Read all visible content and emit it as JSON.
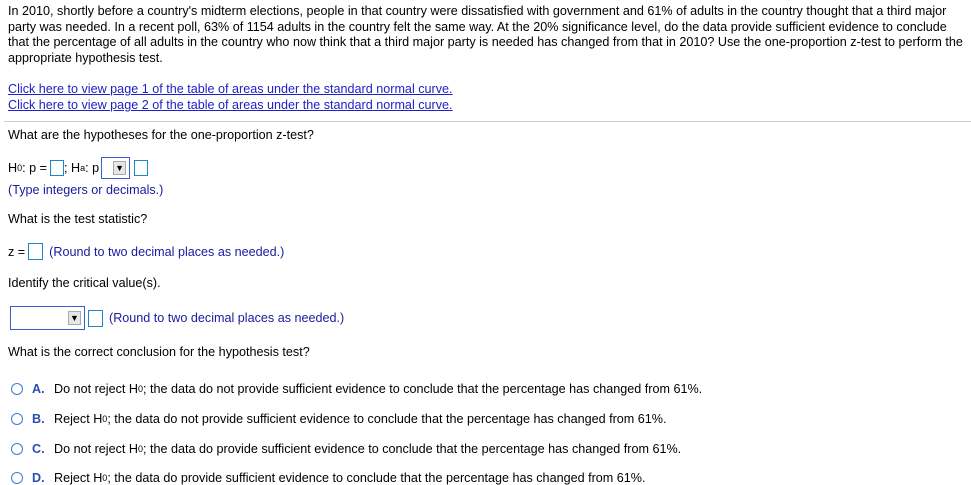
{
  "problem": "In 2010, shortly before a country's midterm elections, people in that country were dissatisfied with government and 61% of adults in the country thought that a third major party was needed. In a recent poll, 63% of 1154 adults in the country felt the same way. At the 20% significance level, do the data provide sufficient evidence to conclude that the percentage of all adults in the country who now think that a third major party is needed has changed from that in 2010? Use the one-proportion z-test to perform the appropriate hypothesis test.",
  "links": [
    "Click here to view page 1 of the table of areas under the standard normal curve.",
    "Click here to view page 2 of the table of areas under the standard normal curve."
  ],
  "q1": {
    "question": "What are the hypotheses for the one-proportion z-test?",
    "h0": "H",
    "h0_sub": "0",
    "h0_rest": ": p =",
    "sep": "; H",
    "ha_sub": "a",
    "ha_rest": ": p",
    "hint": "(Type integers or decimals.)"
  },
  "q2": {
    "question": "What is the test statistic?",
    "label": "z =",
    "hint": "(Round to two decimal places as needed.)"
  },
  "q3": {
    "question": "Identify the critical value(s).",
    "hint": "(Round to two decimal places as needed.)"
  },
  "q4": {
    "question": "What is the correct conclusion for the hypothesis test?",
    "options": [
      {
        "letter": "A.",
        "pre": "Do not reject H",
        "sub": "0",
        "post": "; the data do not provide sufficient evidence to conclude that the percentage has changed from 61%."
      },
      {
        "letter": "B.",
        "pre": "Reject H",
        "sub": "0",
        "post": "; the data do not provide sufficient evidence to conclude that the percentage has changed from 61%."
      },
      {
        "letter": "C.",
        "pre": "Do not reject H",
        "sub": "0",
        "post": "; the data do provide sufficient evidence to conclude that the percentage has changed from 61%."
      },
      {
        "letter": "D.",
        "pre": "Reject H",
        "sub": "0",
        "post": "; the data do provide sufficient evidence to conclude that the percentage has changed from 61%."
      }
    ]
  },
  "dropdown_arrow": "▼"
}
